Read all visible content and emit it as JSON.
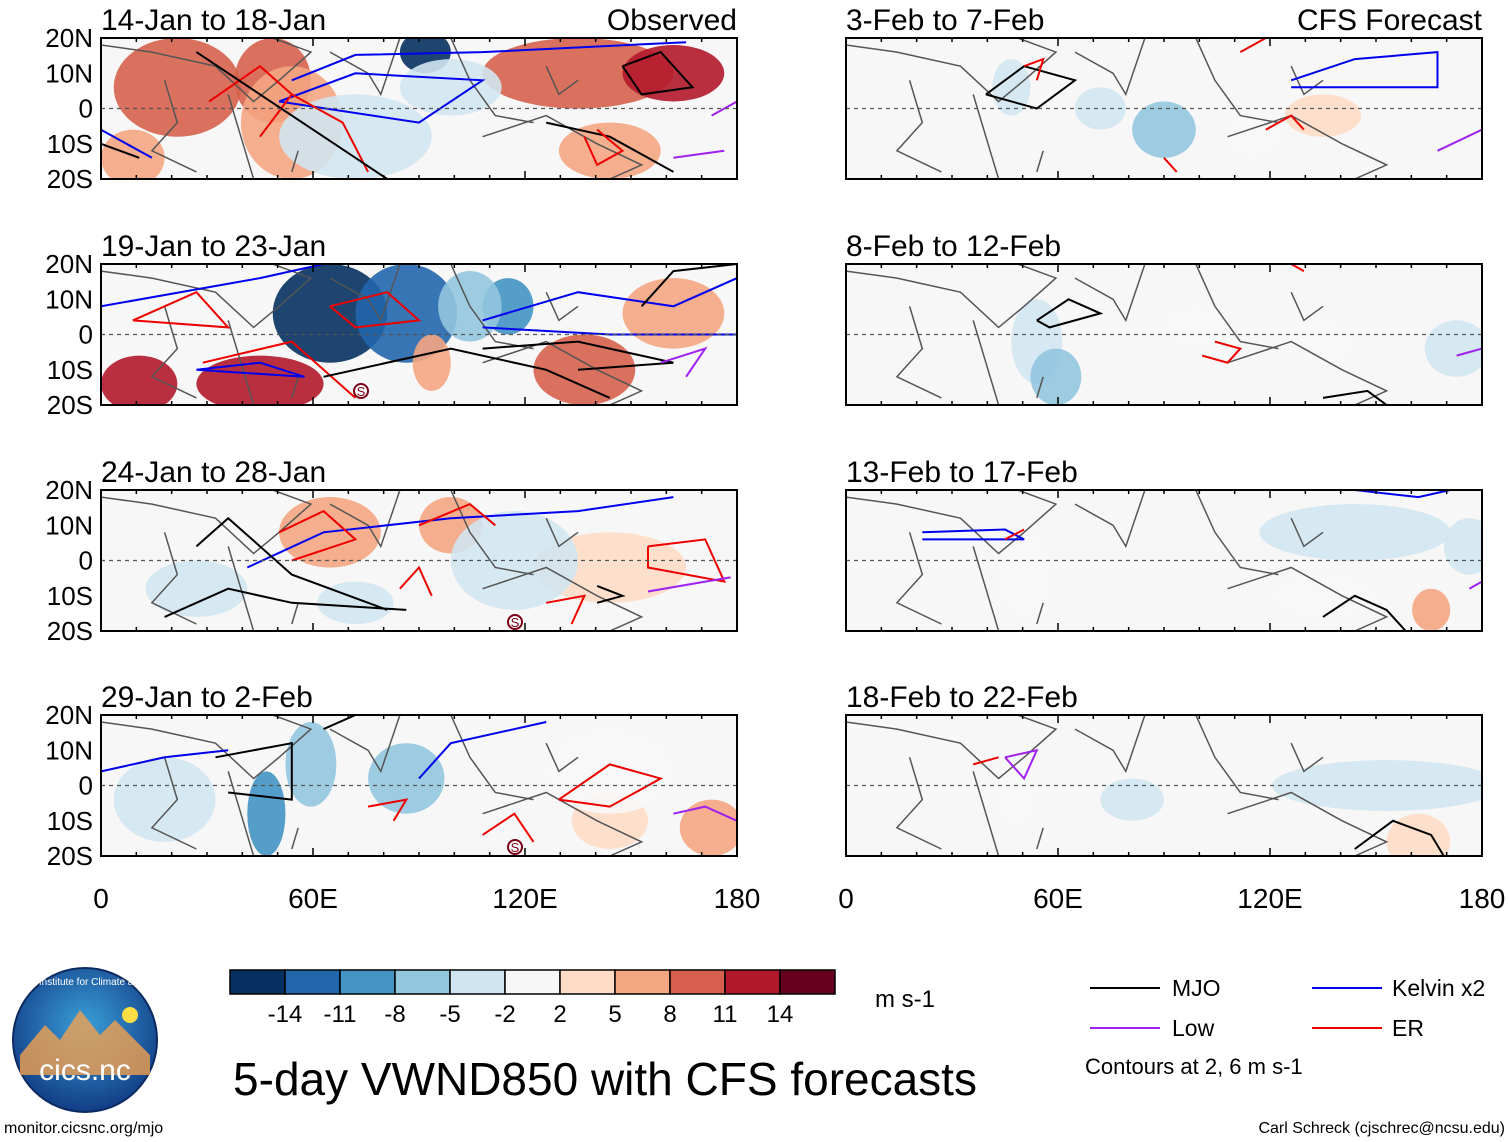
{
  "panels_left": [
    {
      "title": "14-Jan to 18-Jan",
      "tag": "Observed"
    },
    {
      "title": "19-Jan to 23-Jan",
      "tag": ""
    },
    {
      "title": "24-Jan to 28-Jan",
      "tag": ""
    },
    {
      "title": "29-Jan to 2-Feb",
      "tag": ""
    }
  ],
  "panels_right": [
    {
      "title": "3-Feb to 7-Feb",
      "tag": "CFS Forecast"
    },
    {
      "title": "8-Feb to 12-Feb",
      "tag": ""
    },
    {
      "title": "13-Feb to 17-Feb",
      "tag": ""
    },
    {
      "title": "18-Feb to 22-Feb",
      "tag": ""
    }
  ],
  "lat_labels": [
    "20N",
    "10N",
    "0",
    "10S",
    "20S"
  ],
  "lon_labels": [
    "0",
    "60E",
    "120E",
    "180"
  ],
  "storm_marker": "S",
  "colorbar": {
    "labels": [
      "-14",
      "-11",
      "-8",
      "-5",
      "-2",
      "2",
      "5",
      "8",
      "11",
      "14"
    ],
    "colors": [
      "#053061",
      "#2166ac",
      "#4393c3",
      "#92c5de",
      "#d1e5f0",
      "#f7f7f7",
      "#fddbc7",
      "#f4a582",
      "#d6604d",
      "#b2182b",
      "#67001f"
    ],
    "units": "m s-1"
  },
  "legend": {
    "items": [
      {
        "label": "MJO",
        "color": "#000000"
      },
      {
        "label": "Kelvin x2",
        "color": "#0000ee"
      },
      {
        "label": "Low",
        "color": "#a020f0"
      },
      {
        "label": "ER",
        "color": "#ee0000"
      }
    ],
    "note": "Contours at 2, 6 m s-1"
  },
  "main_title": "5-day VWND850 with CFS forecasts",
  "logo_text": "cics.nc",
  "logo_arc_text": "Cooperative Institute for Climate and Satellites",
  "footer_left": "monitor.cicsnc.org/mjo",
  "footer_right": "Carl Schreck (cjschrec@ncsu.edu)"
}
